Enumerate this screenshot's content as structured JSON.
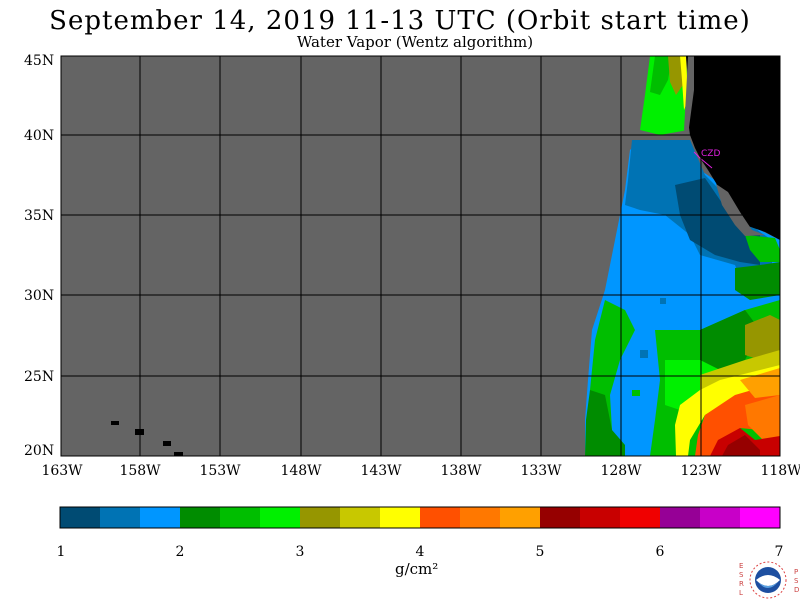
{
  "title": "September 14, 2019  11-13 UTC  (Orbit start time)",
  "subtitle": "Water Vapor (Wentz algorithm)",
  "map": {
    "lat_labels": [
      "45N",
      "40N",
      "35N",
      "30N",
      "25N",
      "20N"
    ],
    "lon_labels": [
      "163W",
      "158W",
      "153W",
      "148W",
      "143W",
      "138W",
      "133W",
      "128W",
      "123W",
      "118W"
    ],
    "station_label": "CZD",
    "colors": {
      "no_data": "#646464",
      "land": "#000000",
      "grid": "#000000",
      "station": "#e020e0"
    }
  },
  "colorbar": {
    "ticks": [
      "1",
      "2",
      "3",
      "4",
      "5",
      "6",
      "7"
    ],
    "units": "g/cm²",
    "colors": [
      "#004b73",
      "#0073b4",
      "#0096ff",
      "#008c00",
      "#00be00",
      "#00f000",
      "#969600",
      "#c8c800",
      "#ffff00",
      "#ff5000",
      "#ff7800",
      "#ffa000",
      "#960000",
      "#c80000",
      "#f00000",
      "#960096",
      "#c800c8",
      "#ff00ff"
    ]
  },
  "logo": {
    "left_letters": "E S R L",
    "right_letters": "P S D"
  }
}
